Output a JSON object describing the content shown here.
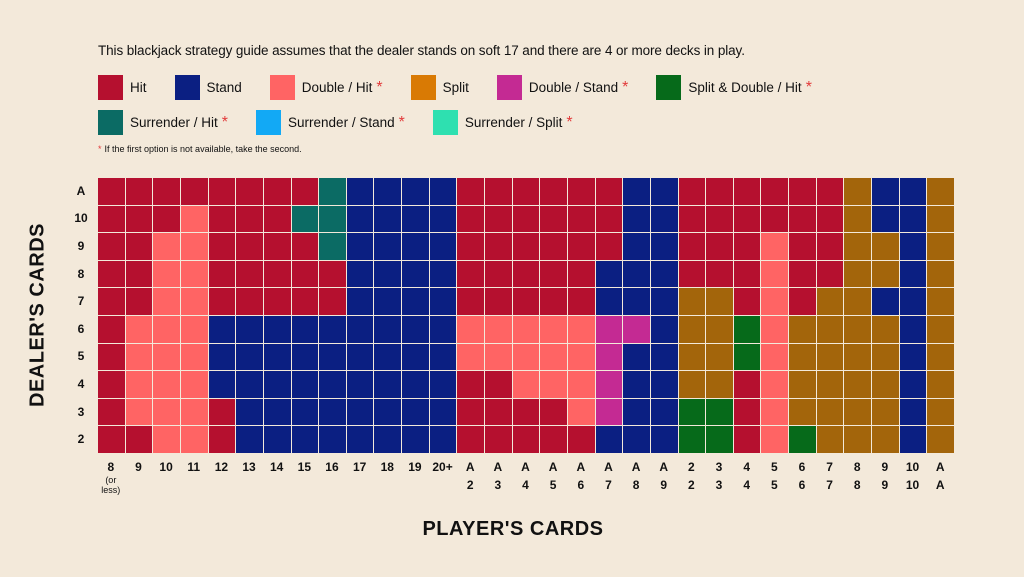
{
  "intro": "This blackjack strategy guide assumes that the dealer stands on soft 17 and there are 4 or more decks in play.",
  "legend": [
    {
      "code": "H",
      "label": "Hit",
      "star": false,
      "color": "#b5102f"
    },
    {
      "code": "S",
      "label": "Stand",
      "star": false,
      "color": "#0b1f82"
    },
    {
      "code": "D",
      "label": "Double / Hit",
      "star": true,
      "color": "#ff6464"
    },
    {
      "code": "P",
      "label": "Split",
      "star": false,
      "color": "#d97a04"
    },
    {
      "code": "DS",
      "label": "Double / Stand",
      "star": true,
      "color": "#c42a93"
    },
    {
      "code": "PD",
      "label": "Split & Double / Hit",
      "star": true,
      "color": "#066a1a"
    },
    {
      "code": "RH",
      "label": "Surrender / Hit",
      "star": true,
      "color": "#0b6b64"
    },
    {
      "code": "RS",
      "label": "Surrender / Stand",
      "star": true,
      "color": "#12a9f5"
    },
    {
      "code": "RP",
      "label": "Surrender / Split",
      "star": true,
      "color": "#2ee0b0"
    }
  ],
  "star_symbol": "*",
  "footnote": "If the first option is not available, take the second.",
  "split_cell_color": "#a3650b",
  "dealer_title": "DEALER'S CARDS",
  "player_title": "PLAYER'S CARDS",
  "dealer_cards": [
    "A",
    "10",
    "9",
    "8",
    "7",
    "6",
    "5",
    "4",
    "3",
    "2"
  ],
  "player_cards": [
    {
      "top": "8",
      "bottom": "(or less)"
    },
    {
      "top": "9"
    },
    {
      "top": "10"
    },
    {
      "top": "11"
    },
    {
      "top": "12"
    },
    {
      "top": "13"
    },
    {
      "top": "14"
    },
    {
      "top": "15"
    },
    {
      "top": "16"
    },
    {
      "top": "17"
    },
    {
      "top": "18"
    },
    {
      "top": "19"
    },
    {
      "top": "20+"
    },
    {
      "top": "A",
      "bottom": "2"
    },
    {
      "top": "A",
      "bottom": "3"
    },
    {
      "top": "A",
      "bottom": "4"
    },
    {
      "top": "A",
      "bottom": "5"
    },
    {
      "top": "A",
      "bottom": "6"
    },
    {
      "top": "A",
      "bottom": "7"
    },
    {
      "top": "A",
      "bottom": "8"
    },
    {
      "top": "A",
      "bottom": "9"
    },
    {
      "top": "2",
      "bottom": "2"
    },
    {
      "top": "3",
      "bottom": "3"
    },
    {
      "top": "4",
      "bottom": "4"
    },
    {
      "top": "5",
      "bottom": "5"
    },
    {
      "top": "6",
      "bottom": "6"
    },
    {
      "top": "7",
      "bottom": "7"
    },
    {
      "top": "8",
      "bottom": "8"
    },
    {
      "top": "9",
      "bottom": "9"
    },
    {
      "top": "10",
      "bottom": "10"
    },
    {
      "top": "A",
      "bottom": "A"
    }
  ],
  "strategy": [
    [
      "H",
      "H",
      "H",
      "H",
      "H",
      "H",
      "H",
      "H",
      "RH",
      "S",
      "S",
      "S",
      "S",
      "H",
      "H",
      "H",
      "H",
      "H",
      "H",
      "S",
      "S",
      "H",
      "H",
      "H",
      "H",
      "H",
      "H",
      "P",
      "S",
      "S",
      "P"
    ],
    [
      "H",
      "H",
      "H",
      "D",
      "H",
      "H",
      "H",
      "RH",
      "RH",
      "S",
      "S",
      "S",
      "S",
      "H",
      "H",
      "H",
      "H",
      "H",
      "H",
      "S",
      "S",
      "H",
      "H",
      "H",
      "H",
      "H",
      "H",
      "P",
      "S",
      "S",
      "P"
    ],
    [
      "H",
      "H",
      "D",
      "D",
      "H",
      "H",
      "H",
      "H",
      "RH",
      "S",
      "S",
      "S",
      "S",
      "H",
      "H",
      "H",
      "H",
      "H",
      "H",
      "S",
      "S",
      "H",
      "H",
      "H",
      "D",
      "H",
      "H",
      "P",
      "P",
      "S",
      "P"
    ],
    [
      "H",
      "H",
      "D",
      "D",
      "H",
      "H",
      "H",
      "H",
      "H",
      "S",
      "S",
      "S",
      "S",
      "H",
      "H",
      "H",
      "H",
      "H",
      "S",
      "S",
      "S",
      "H",
      "H",
      "H",
      "D",
      "H",
      "H",
      "P",
      "P",
      "S",
      "P"
    ],
    [
      "H",
      "H",
      "D",
      "D",
      "H",
      "H",
      "H",
      "H",
      "H",
      "S",
      "S",
      "S",
      "S",
      "H",
      "H",
      "H",
      "H",
      "H",
      "S",
      "S",
      "S",
      "P",
      "P",
      "H",
      "D",
      "H",
      "P",
      "P",
      "S",
      "S",
      "P"
    ],
    [
      "H",
      "D",
      "D",
      "D",
      "S",
      "S",
      "S",
      "S",
      "S",
      "S",
      "S",
      "S",
      "S",
      "D",
      "D",
      "D",
      "D",
      "D",
      "DS",
      "DS",
      "S",
      "P",
      "P",
      "PD",
      "D",
      "P",
      "P",
      "P",
      "P",
      "S",
      "P"
    ],
    [
      "H",
      "D",
      "D",
      "D",
      "S",
      "S",
      "S",
      "S",
      "S",
      "S",
      "S",
      "S",
      "S",
      "D",
      "D",
      "D",
      "D",
      "D",
      "DS",
      "S",
      "S",
      "P",
      "P",
      "PD",
      "D",
      "P",
      "P",
      "P",
      "P",
      "S",
      "P"
    ],
    [
      "H",
      "D",
      "D",
      "D",
      "S",
      "S",
      "S",
      "S",
      "S",
      "S",
      "S",
      "S",
      "S",
      "H",
      "H",
      "D",
      "D",
      "D",
      "DS",
      "S",
      "S",
      "P",
      "P",
      "H",
      "D",
      "P",
      "P",
      "P",
      "P",
      "S",
      "P"
    ],
    [
      "H",
      "D",
      "D",
      "D",
      "H",
      "S",
      "S",
      "S",
      "S",
      "S",
      "S",
      "S",
      "S",
      "H",
      "H",
      "H",
      "H",
      "D",
      "DS",
      "S",
      "S",
      "PD",
      "PD",
      "H",
      "D",
      "P",
      "P",
      "P",
      "P",
      "S",
      "P"
    ],
    [
      "H",
      "H",
      "D",
      "D",
      "H",
      "S",
      "S",
      "S",
      "S",
      "S",
      "S",
      "S",
      "S",
      "H",
      "H",
      "H",
      "H",
      "H",
      "S",
      "S",
      "S",
      "PD",
      "PD",
      "H",
      "D",
      "PD",
      "P",
      "P",
      "P",
      "S",
      "P"
    ]
  ]
}
